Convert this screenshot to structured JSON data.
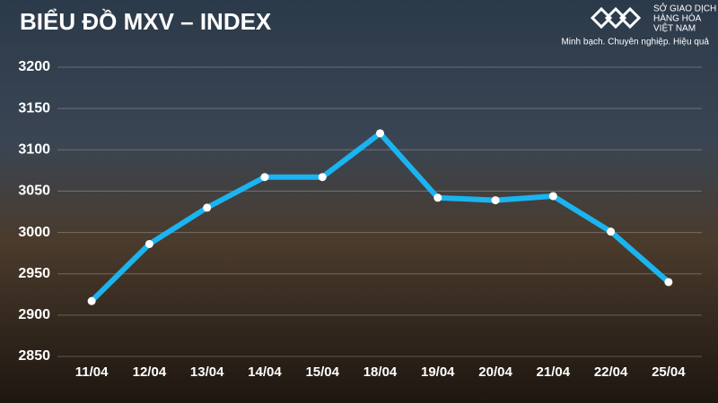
{
  "chart_data": {
    "type": "line",
    "title": "BIỂU ĐỒ MXV – INDEX",
    "categories": [
      "11/04",
      "12/04",
      "13/04",
      "14/04",
      "15/04",
      "18/04",
      "19/04",
      "20/04",
      "21/04",
      "22/04",
      "25/04"
    ],
    "series": [
      {
        "name": "MXV-Index",
        "color": "#1ab4f0",
        "values": [
          2917,
          2986,
          3030,
          3067,
          3067,
          3120,
          3042,
          3039,
          3044,
          3001,
          2940
        ]
      }
    ],
    "ylim": [
      2850,
      3200
    ],
    "yticks": [
      2850,
      2900,
      2950,
      3000,
      3050,
      3100,
      3150,
      3200
    ],
    "grid": true
  },
  "logo": {
    "line1": "SỞ GIAO DỊCH",
    "line2": "HÀNG HÓA",
    "line3": "VIỆT NAM",
    "slogan": "Minh bạch. Chuyên nghiệp. Hiệu quả"
  }
}
